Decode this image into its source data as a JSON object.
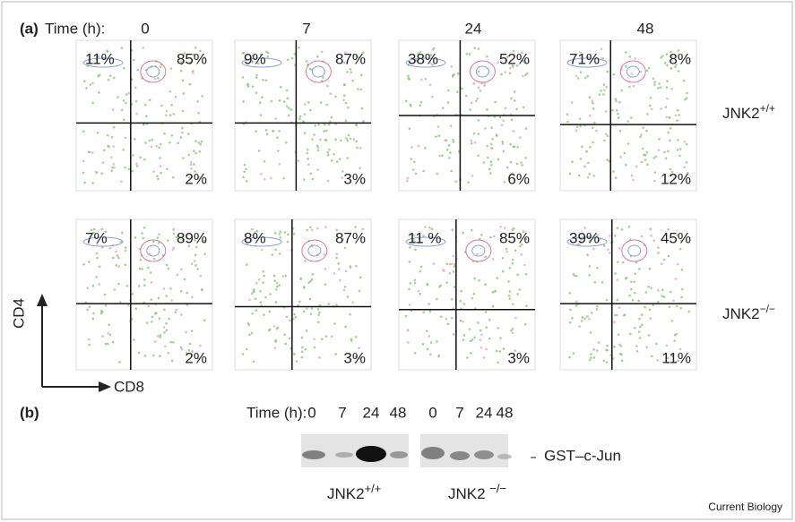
{
  "panel_a": {
    "label": "(a)",
    "time_label": "Time  (h):",
    "times": [
      "0",
      "7",
      "24",
      "48"
    ],
    "rows": [
      {
        "genotype": "JNK2",
        "superscript": "+/+",
        "plots": [
          {
            "top_left": "11%",
            "top_right": "85%",
            "bottom_right": "2%"
          },
          {
            "top_left": "9%",
            "top_right": "87%",
            "bottom_right": "3%"
          },
          {
            "top_left": "38%",
            "top_right": "52%",
            "bottom_right": "6%"
          },
          {
            "top_left": "71%",
            "top_right": "8%",
            "bottom_right": "12%"
          }
        ]
      },
      {
        "genotype": "JNK2",
        "superscript": "−/−",
        "plots": [
          {
            "top_left": "7%",
            "top_right": "89%",
            "bottom_right": "2%"
          },
          {
            "top_left": "8%",
            "top_right": "87%",
            "bottom_right": "3%"
          },
          {
            "top_left": "11 %",
            "top_right": "85%",
            "bottom_right": "3%"
          },
          {
            "top_left": "39%",
            "top_right": "45%",
            "bottom_right": "11%"
          }
        ]
      }
    ],
    "y_axis": "CD4",
    "x_axis": "CD8"
  },
  "panel_b": {
    "label": "(b)",
    "time_label": "Time (h):",
    "lanes": [
      "0",
      "7",
      "24",
      "48",
      "0",
      "7",
      "24",
      "48"
    ],
    "band_label": "GST–c-Jun",
    "groups": [
      {
        "name": "JNK2",
        "superscript": "+/+"
      },
      {
        "name": "JNK2 ",
        "superscript": "−/−"
      }
    ]
  },
  "credit": "Current Biology"
}
